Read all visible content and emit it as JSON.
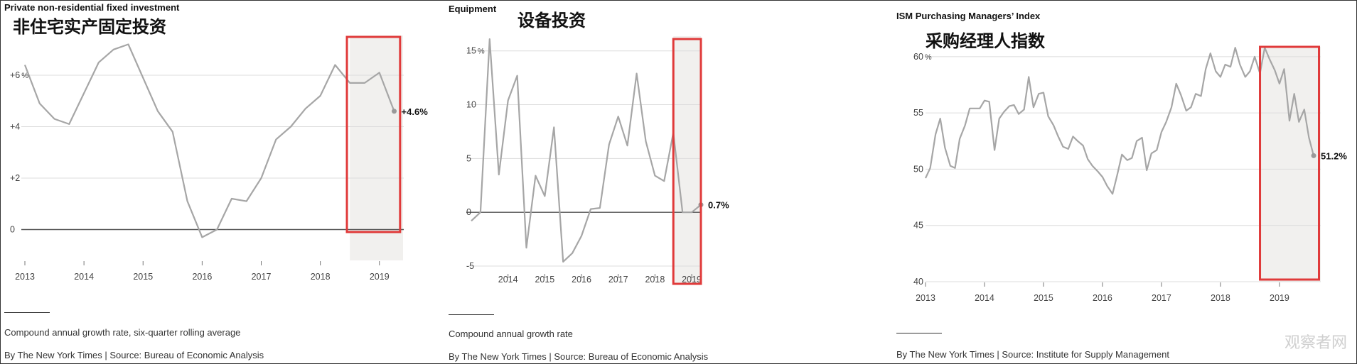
{
  "watermark": "观察者网",
  "chart_data": [
    {
      "type": "line",
      "title": "Private non-residential fixed investment",
      "subtitle_cn": "非住宅实产固定投资",
      "yticks": [
        0,
        2,
        4,
        6
      ],
      "ytick_labels": [
        "0",
        "+2",
        "+4",
        "+6"
      ],
      "ytick_unit": "%",
      "xticks": [
        2013,
        2014,
        2015,
        2016,
        2017,
        2018,
        2019
      ],
      "ylim": [
        -1.2,
        7.6
      ],
      "xlim": [
        2013.0,
        2019.4
      ],
      "shade_start": 2018.5,
      "highlight": [
        2018.45,
        2019.35
      ],
      "end_label": "+4.6%",
      "note": "Compound annual growth rate, six-quarter rolling average",
      "credit": "By The New York Times | Source: Bureau of Economic Analysis",
      "x": [
        2013.0,
        2013.25,
        2013.5,
        2013.75,
        2014.0,
        2014.25,
        2014.5,
        2014.75,
        2015.0,
        2015.25,
        2015.5,
        2015.75,
        2016.0,
        2016.25,
        2016.5,
        2016.75,
        2017.0,
        2017.25,
        2017.5,
        2017.75,
        2018.0,
        2018.25,
        2018.5,
        2018.75,
        2019.0,
        2019.25
      ],
      "values": [
        6.4,
        4.9,
        4.3,
        4.1,
        5.3,
        6.5,
        7.0,
        7.2,
        5.9,
        4.6,
        3.8,
        1.1,
        -0.3,
        0.0,
        1.2,
        1.1,
        2.0,
        3.5,
        4.0,
        4.7,
        5.2,
        6.4,
        5.7,
        5.7,
        6.1,
        4.6
      ]
    },
    {
      "type": "line",
      "title": "Equipment",
      "subtitle_cn": "设备投资",
      "yticks": [
        -5,
        0,
        5,
        10,
        15
      ],
      "ytick_labels": [
        "-5",
        "0",
        "5",
        "10",
        "15"
      ],
      "ytick_unit": "%",
      "xticks": [
        2014,
        2015,
        2016,
        2017,
        2018,
        2019
      ],
      "ylim": [
        -5.0,
        16.5
      ],
      "xlim": [
        2013.0,
        2019.25
      ],
      "shade_start": 2018.5,
      "highlight": [
        2018.5,
        2019.25
      ],
      "end_label": "0.7%",
      "note": "Compound annual growth rate",
      "credit": "By The New York Times | Source: Bureau of Economic Analysis",
      "x": [
        2013.0,
        2013.25,
        2013.5,
        2013.75,
        2014.0,
        2014.25,
        2014.5,
        2014.75,
        2015.0,
        2015.25,
        2015.5,
        2015.75,
        2016.0,
        2016.25,
        2016.5,
        2016.75,
        2017.0,
        2017.25,
        2017.5,
        2017.75,
        2018.0,
        2018.25,
        2018.5,
        2018.75,
        2019.0,
        2019.25
      ],
      "values": [
        -0.8,
        0.0,
        16.1,
        3.5,
        10.4,
        12.7,
        -3.3,
        3.4,
        1.5,
        7.9,
        -4.6,
        -3.8,
        -2.2,
        0.3,
        0.4,
        6.3,
        8.9,
        6.2,
        12.9,
        6.6,
        3.4,
        2.9,
        7.4,
        0.0,
        0.0,
        0.7
      ]
    },
    {
      "type": "line",
      "title": "ISM Purchasing Managers’ Index",
      "subtitle_cn": "采购经理人指数",
      "yticks": [
        40,
        45,
        50,
        55,
        60
      ],
      "ytick_labels": [
        "40",
        "45",
        "50",
        "55",
        "60"
      ],
      "ytick_unit": "%",
      "xticks": [
        2013,
        2014,
        2015,
        2016,
        2017,
        2018,
        2019
      ],
      "ylim": [
        40,
        61
      ],
      "xlim": [
        2013.0,
        2019.7
      ],
      "shade_start": 2018.67,
      "highlight": [
        2018.67,
        2019.67
      ],
      "end_label": "51.2%",
      "note": "",
      "credit": "By The New York Times | Source: Institute for Supply Management",
      "x": [
        2013.0,
        2013.08,
        2013.17,
        2013.25,
        2013.33,
        2013.42,
        2013.5,
        2013.58,
        2013.67,
        2013.75,
        2013.83,
        2013.92,
        2014.0,
        2014.08,
        2014.17,
        2014.25,
        2014.33,
        2014.42,
        2014.5,
        2014.58,
        2014.67,
        2014.75,
        2014.83,
        2014.92,
        2015.0,
        2015.08,
        2015.17,
        2015.25,
        2015.33,
        2015.42,
        2015.5,
        2015.58,
        2015.67,
        2015.75,
        2015.83,
        2015.92,
        2016.0,
        2016.08,
        2016.17,
        2016.25,
        2016.33,
        2016.42,
        2016.5,
        2016.58,
        2016.67,
        2016.75,
        2016.83,
        2016.92,
        2017.0,
        2017.08,
        2017.17,
        2017.25,
        2017.33,
        2017.42,
        2017.5,
        2017.58,
        2017.67,
        2017.75,
        2017.83,
        2017.92,
        2018.0,
        2018.08,
        2018.17,
        2018.25,
        2018.33,
        2018.42,
        2018.5,
        2018.58,
        2018.67,
        2018.75,
        2018.83,
        2018.92,
        2019.0,
        2019.08,
        2019.17,
        2019.25,
        2019.33,
        2019.42,
        2019.5,
        2019.58
      ],
      "values": [
        49.2,
        50.1,
        53.1,
        54.5,
        51.9,
        50.3,
        50.1,
        52.7,
        53.9,
        55.4,
        55.4,
        55.4,
        56.1,
        56.0,
        51.7,
        54.5,
        55.1,
        55.6,
        55.7,
        54.9,
        55.3,
        58.2,
        55.5,
        56.7,
        56.8,
        54.7,
        53.9,
        52.9,
        52.0,
        51.8,
        52.9,
        52.5,
        52.1,
        50.9,
        50.3,
        49.8,
        49.3,
        48.5,
        47.8,
        49.5,
        51.3,
        50.8,
        51.0,
        52.5,
        52.8,
        49.9,
        51.4,
        51.7,
        53.3,
        54.2,
        55.5,
        57.6,
        56.6,
        55.2,
        55.5,
        56.7,
        56.5,
        58.9,
        60.3,
        58.7,
        58.2,
        59.3,
        59.1,
        60.8,
        59.3,
        58.2,
        58.7,
        60.0,
        58.5,
        60.8,
        59.8,
        58.8,
        57.6,
        58.9,
        54.3,
        56.7,
        54.2,
        55.3,
        52.8,
        51.2
      ]
    }
  ]
}
